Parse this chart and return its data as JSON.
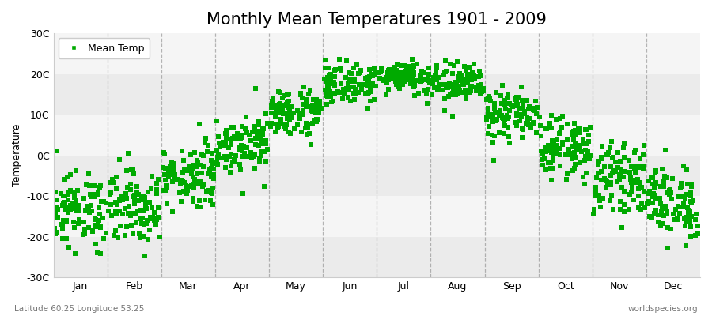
{
  "title": "Monthly Mean Temperatures 1901 - 2009",
  "ylabel": "Temperature",
  "bottom_left": "Latitude 60.25 Longitude 53.25",
  "bottom_right": "worldspecies.org",
  "legend_label": "Mean Temp",
  "ylim": [
    -30,
    30
  ],
  "yticks": [
    -30,
    -20,
    -10,
    0,
    10,
    20,
    30
  ],
  "ytick_labels": [
    "-30C",
    "-20C",
    "-10C",
    "0C",
    "10C",
    "20C",
    "30C"
  ],
  "month_names": [
    "Jan",
    "Feb",
    "Mar",
    "Apr",
    "May",
    "Jun",
    "Jul",
    "Aug",
    "Sep",
    "Oct",
    "Nov",
    "Dec"
  ],
  "monthly_means": [
    -13.5,
    -12.5,
    -5.0,
    3.0,
    10.5,
    17.5,
    19.5,
    17.5,
    10.0,
    2.0,
    -5.5,
    -11.5
  ],
  "monthly_stds": [
    4.5,
    4.5,
    4.0,
    3.5,
    3.0,
    2.5,
    2.0,
    2.5,
    3.0,
    3.5,
    4.0,
    4.5
  ],
  "n_years": 109,
  "dot_color": "#00aa00",
  "background_color": "#ffffff",
  "plot_bg_color": "#ebebeb",
  "alt_band_color": "#f5f5f5",
  "grid_color": "#888888",
  "title_fontsize": 15,
  "label_fontsize": 9,
  "tick_fontsize": 9,
  "marker": "s",
  "marker_size": 4,
  "seed": 12345
}
